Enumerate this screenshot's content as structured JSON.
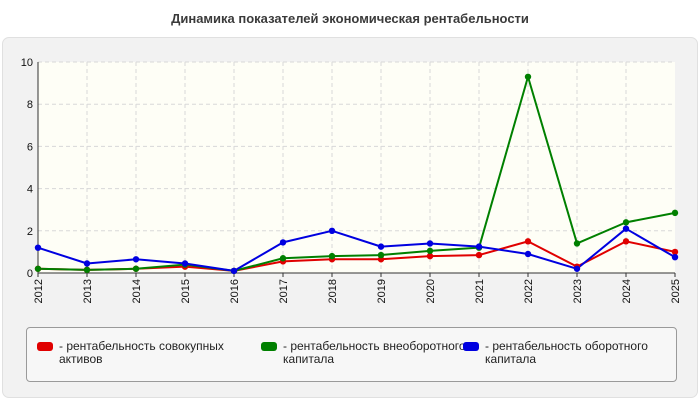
{
  "chart_data": {
    "type": "line",
    "title": "Динамика показателей экономическая рентабельности",
    "categories": [
      "2012",
      "2013",
      "2014",
      "2015",
      "2016",
      "2017",
      "2018",
      "2019",
      "2020",
      "2021",
      "2022",
      "2023",
      "2024",
      "2025"
    ],
    "y_ticks": [
      "0",
      "2",
      "4",
      "6",
      "8",
      "10"
    ],
    "ylim": [
      0,
      10
    ],
    "grid": true,
    "legend_position": "bottom",
    "series": [
      {
        "name": "- рентабельность совокупных активов",
        "color": "#e00000",
        "values": [
          0.2,
          0.15,
          0.2,
          0.3,
          0.1,
          0.55,
          0.65,
          0.65,
          0.8,
          0.85,
          1.5,
          0.3,
          1.5,
          1.0
        ]
      },
      {
        "name": "- рентабельность внеоборотного капитала",
        "color": "#008000",
        "values": [
          0.2,
          0.15,
          0.2,
          0.4,
          0.1,
          0.7,
          0.8,
          0.85,
          1.05,
          1.2,
          9.3,
          1.4,
          2.4,
          2.85
        ]
      },
      {
        "name": "- рентабельность оборотного капитала",
        "color": "#0000e0",
        "values": [
          1.2,
          0.45,
          0.65,
          0.45,
          0.1,
          1.45,
          2.0,
          1.25,
          1.4,
          1.25,
          0.9,
          0.2,
          2.1,
          0.75
        ]
      }
    ]
  }
}
